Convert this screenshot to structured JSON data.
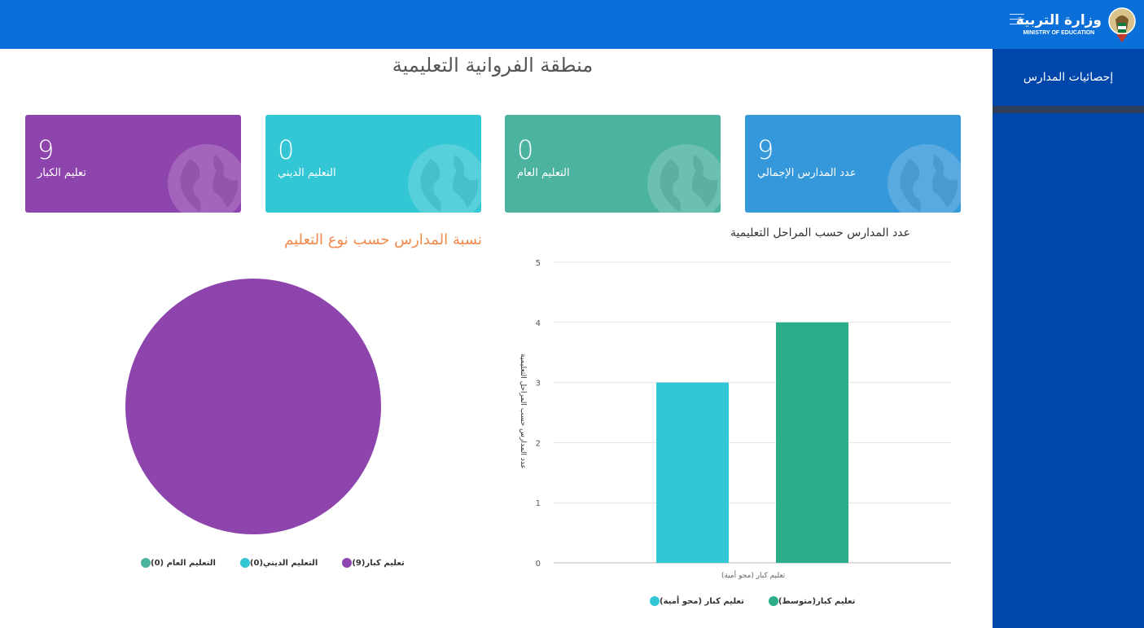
{
  "header": {
    "logo_ar": "وزارة التربية",
    "logo_en": "MINISTRY OF EDUCATION",
    "menu_icon": "hamburger-icon",
    "color": "#0a6fd8"
  },
  "sidebar": {
    "items": [
      {
        "label": "إحصائيات المدارس"
      }
    ],
    "color": "#0047ab"
  },
  "page_title": "منطقة الفروانية التعليمية",
  "cards": [
    {
      "value": "9",
      "label": "تعليم الكبار",
      "color": "#8e44ad",
      "icon": "globe-icon"
    },
    {
      "value": "0",
      "label": "التعليم الديني",
      "color": "#33c6d4",
      "icon": "globe-icon"
    },
    {
      "value": "0",
      "label": "التعليم العام",
      "color": "#4bb3a0",
      "icon": "globe-icon"
    },
    {
      "value": "9",
      "label": "عدد المدارس الإجمالي",
      "color": "#3498db",
      "icon": "globe-icon"
    }
  ],
  "pie_chart_title": "نسبة المدارس حسب نوع التعليم",
  "bar_chart_title": "عدد المدارس حسب المراحل التعليمية",
  "chart_data": [
    {
      "type": "bar",
      "title": "عدد المدارس حسب المراحل التعليمية",
      "ylabel": "عدد المدارس حسب المراحل التعليمية",
      "categories": [
        "تعليم كبار (محو أمية)"
      ],
      "series": [
        {
          "name": "تعليم كبار (محو أمية)",
          "values": [
            3
          ],
          "color": "#33c6d4"
        },
        {
          "name": "تعليم كبار(متوسط)",
          "values": [
            4
          ],
          "color": "#2aad88"
        }
      ],
      "yticks": [
        "0",
        "1",
        "2",
        "3",
        "4",
        "5"
      ],
      "ylim": [
        0,
        5
      ],
      "grid": true,
      "legend_position": "bottom"
    },
    {
      "type": "pie",
      "title": "نسبة المدارس حسب نوع التعليم",
      "slices": [
        {
          "label": "تعليم كبار(9)",
          "value": 9,
          "color": "#8e44ad"
        },
        {
          "label": "التعليم الديني(0)",
          "value": 0,
          "color": "#33c6d4"
        },
        {
          "label": "التعليم العام (0)",
          "value": 0,
          "color": "#4bb3a0"
        }
      ],
      "legend_position": "bottom"
    }
  ]
}
